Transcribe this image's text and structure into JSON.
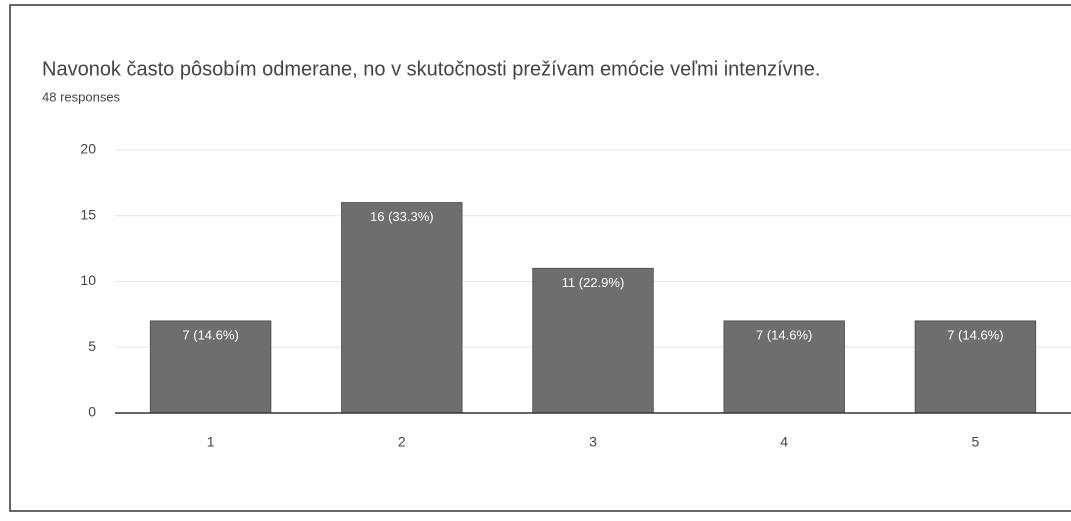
{
  "chart_data": {
    "type": "bar",
    "title": "Navonok často pôsobím odmerane, no v skutočnosti prežívam emócie veľmi intenzívne.",
    "subtitle": "48 responses",
    "categories": [
      "1",
      "2",
      "3",
      "4",
      "5"
    ],
    "values": [
      7,
      16,
      11,
      7,
      7
    ],
    "value_labels": [
      "7 (14.6%)",
      "16 (33.3%)",
      "11 (22.9%)",
      "7 (14.6%)",
      "7 (14.6%)"
    ],
    "color": "#6e6e6e",
    "ylim": [
      0,
      20
    ],
    "yticks": [
      0,
      5,
      10,
      15,
      20
    ],
    "grid": true
  }
}
